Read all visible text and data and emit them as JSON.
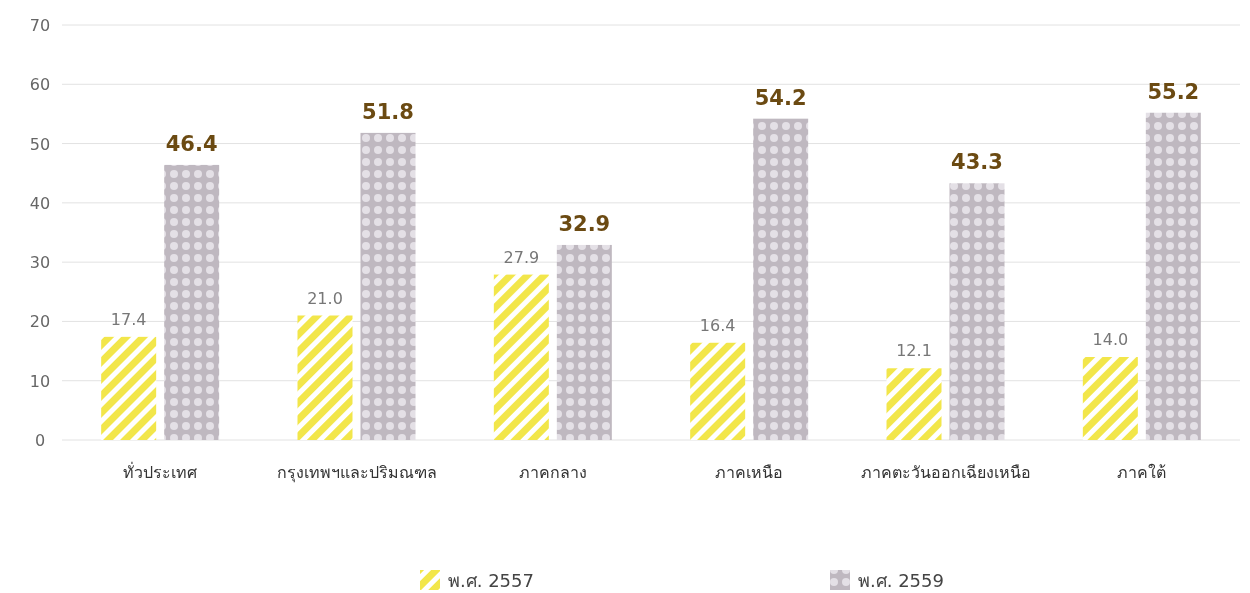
{
  "chart_data": {
    "type": "bar",
    "categories": [
      "ทั่วประเทศ",
      "กรุงเทพฯและปริมณฑล",
      "ภาคกลาง",
      "ภาคเหนือ",
      "ภาคตะวันออกเฉียงเหนือ",
      "ภาคใต้"
    ],
    "series": [
      {
        "name": "พ.ศ. 2557",
        "color": "#f2e64a",
        "values": [
          17.4,
          21.0,
          27.9,
          16.4,
          12.1,
          14.0
        ],
        "value_labels": [
          "17.4",
          "21.0",
          "27.9",
          "16.4",
          "12.1",
          "14.0"
        ]
      },
      {
        "name": "พ.ศ. 2559",
        "color": "#bfb8c0",
        "values": [
          46.4,
          51.8,
          32.9,
          54.2,
          43.3,
          55.2
        ],
        "value_labels": [
          "46.4",
          "51.8",
          "32.9",
          "54.2",
          "43.3",
          "55.2"
        ]
      }
    ],
    "ylim": [
      0,
      70
    ],
    "yticks": [
      0,
      10,
      20,
      30,
      40,
      50,
      60,
      70
    ],
    "grid": "y",
    "legend": "bottom"
  }
}
